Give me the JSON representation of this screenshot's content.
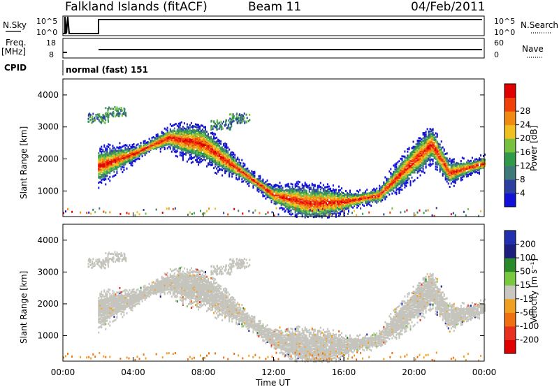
{
  "header": {
    "station": "Falkland Islands (fitACF)",
    "beam": "Beam 11",
    "date": "04/Feb/2011"
  },
  "status_panels": {
    "nsky_label": "N.Sky",
    "nsky_ticks": [
      "10^5",
      "10^0"
    ],
    "nsearch_label": "N.Search",
    "nsearch_ticks": [
      "10^5",
      "10^0"
    ],
    "freq_label": "Freq.",
    "freq_unit": "[MHz]",
    "freq_ticks": [
      "18",
      "8"
    ],
    "nave_label": "Nave",
    "nave_ticks": [
      "60",
      "0"
    ],
    "cpid_label": "CPID",
    "cpid_value": "normal (fast) 151"
  },
  "colors": {
    "power_scale": [
      "#1010d8",
      "#2a3fa0",
      "#3f7a7a",
      "#2e9a4a",
      "#78c040",
      "#f0c020",
      "#f08a10",
      "#f04008",
      "#e00000"
    ],
    "velocity_scale": [
      "#2030b0",
      "#1e1e80",
      "#2a8a2a",
      "#78c840",
      "#c8c8c0",
      "#f0a020",
      "#f07010",
      "#e83020",
      "#e00000"
    ],
    "grey": "#c4c4bc"
  },
  "chart_data": [
    {
      "type": "heatmap",
      "name": "power",
      "xlabel": "Time UT",
      "ylabel": "Slant Range [km]",
      "x_ticks": [
        "00:00",
        "04:00",
        "08:00",
        "12:00",
        "16:00",
        "20:00",
        "00:00"
      ],
      "x_range_hours": [
        0,
        24
      ],
      "ylim": [
        200,
        4500
      ],
      "y_ticks": [
        1000,
        2000,
        3000,
        4000
      ],
      "colorbar": {
        "label": "Power [dB]",
        "range": [
          0,
          32
        ],
        "ticks": [
          4,
          8,
          12,
          16,
          20,
          24,
          28
        ]
      },
      "features": [
        {
          "description": "main F-region band",
          "points": [
            [
              2,
              1800
            ],
            [
              4,
              2200
            ],
            [
              6,
              2700
            ],
            [
              8,
              2500
            ],
            [
              10,
              1700
            ],
            [
              12,
              900
            ],
            [
              14,
              650
            ],
            [
              16,
              700
            ],
            [
              18,
              900
            ],
            [
              20,
              2000
            ],
            [
              21,
              2500
            ],
            [
              22,
              1600
            ],
            [
              24,
              1900
            ]
          ],
          "peak_power": 28
        },
        {
          "description": "high-range echoes",
          "points": [
            [
              2,
              3300
            ],
            [
              3,
              3500
            ],
            [
              9,
              3100
            ],
            [
              10,
              3300
            ]
          ],
          "peak_power": 10
        }
      ]
    },
    {
      "type": "heatmap",
      "name": "velocity",
      "xlabel": "Time UT",
      "ylabel": "Slant Range [km]",
      "x_ticks": [
        "00:00",
        "04:00",
        "08:00",
        "12:00",
        "16:00",
        "20:00",
        "00:00"
      ],
      "x_range_hours": [
        0,
        24
      ],
      "ylim": [
        200,
        4500
      ],
      "y_ticks": [
        1000,
        2000,
        3000,
        4000
      ],
      "colorbar": {
        "label": "Velocity [m s⁻¹]",
        "ticks": [
          200,
          100,
          50,
          15,
          -15,
          -50,
          -100,
          -200
        ]
      }
    }
  ]
}
